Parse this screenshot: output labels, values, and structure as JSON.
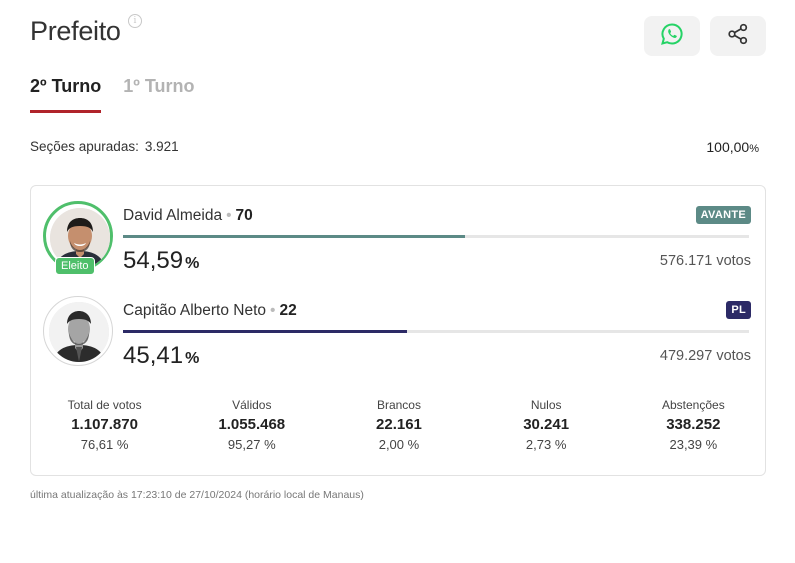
{
  "header": {
    "title": "Prefeito",
    "info_icon": "i",
    "share_buttons": [
      {
        "name": "whatsapp",
        "icon": "whatsapp-icon",
        "color": "#25d366"
      },
      {
        "name": "share",
        "icon": "share-icon",
        "color": "#333333"
      }
    ]
  },
  "tabs": [
    {
      "label": "2º Turno",
      "active": true
    },
    {
      "label": "1º Turno",
      "active": false
    }
  ],
  "summary": {
    "sections_label": "Seções apuradas:",
    "sections_value": "3.921",
    "percent_main": "100,00",
    "percent_symbol": "%"
  },
  "candidates": [
    {
      "name": "David Almeida",
      "number": "70",
      "party": "AVANTE",
      "party_color": "#5c8a86",
      "percent": "54,59",
      "percent_symbol": "%",
      "percent_value": 54.59,
      "votes": "576.171 votos",
      "badge": "Eleito",
      "badge_color": "#4fbf6b"
    },
    {
      "name": "Capitão Alberto Neto",
      "number": "22",
      "party": "PL",
      "party_color": "#2c2a66",
      "percent": "45,41",
      "percent_symbol": "%",
      "percent_value": 45.41,
      "votes": "479.297 votos"
    }
  ],
  "stats": [
    {
      "label": "Total de votos",
      "value": "1.107.870",
      "percent": "76,61 %"
    },
    {
      "label": "Válidos",
      "value": "1.055.468",
      "percent": "95,27 %"
    },
    {
      "label": "Brancos",
      "value": "22.161",
      "percent": "2,00 %"
    },
    {
      "label": "Nulos",
      "value": "30.241",
      "percent": "2,73 %"
    },
    {
      "label": "Abstenções",
      "value": "338.252",
      "percent": "23,39 %"
    }
  ],
  "footer": {
    "updated": "última atualização às 17:23:10 de 27/10/2024 (horário local de Manaus)"
  },
  "colors": {
    "accent_tab": "#b0232a",
    "elected_green": "#4fbf6b"
  }
}
